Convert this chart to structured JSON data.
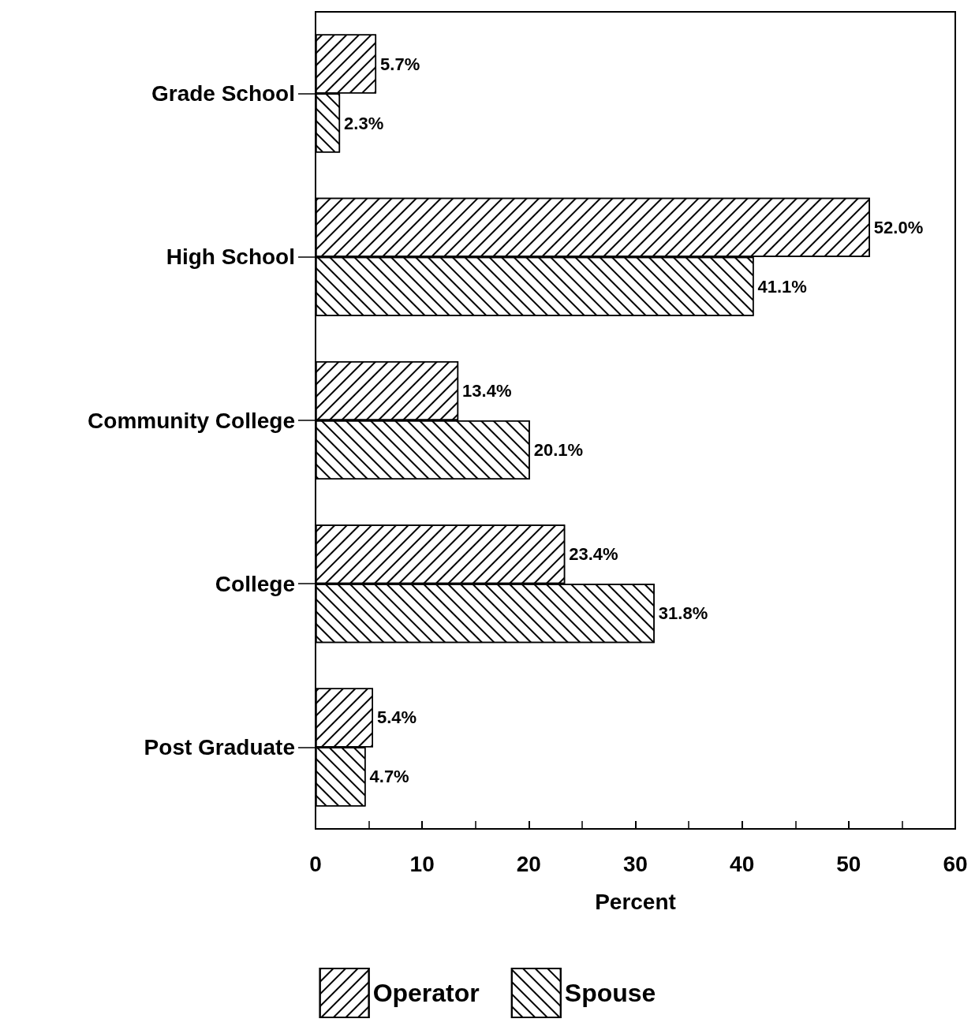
{
  "chart_data": {
    "type": "bar",
    "orientation": "horizontal",
    "xlabel": "Percent",
    "categories": [
      "Grade School",
      "High School",
      "Community College",
      "College",
      "Post Graduate"
    ],
    "series": [
      {
        "name": "Operator",
        "color": "#000000",
        "values": [
          5.7,
          52.0,
          13.4,
          23.4,
          5.4
        ],
        "value_labels": [
          "5.7%",
          "52.0%",
          "13.4%",
          "23.4%",
          "5.4%"
        ]
      },
      {
        "name": "Spouse",
        "color": "#000000",
        "values": [
          2.3,
          41.1,
          20.1,
          31.8,
          4.7
        ],
        "value_labels": [
          "2.3%",
          "41.1%",
          "20.1%",
          "31.8%",
          "4.7%"
        ]
      }
    ],
    "xlim": [
      0,
      60
    ],
    "xticks": [
      0,
      10,
      20,
      30,
      40,
      50,
      60
    ],
    "grid": false,
    "legend": "bottom"
  }
}
